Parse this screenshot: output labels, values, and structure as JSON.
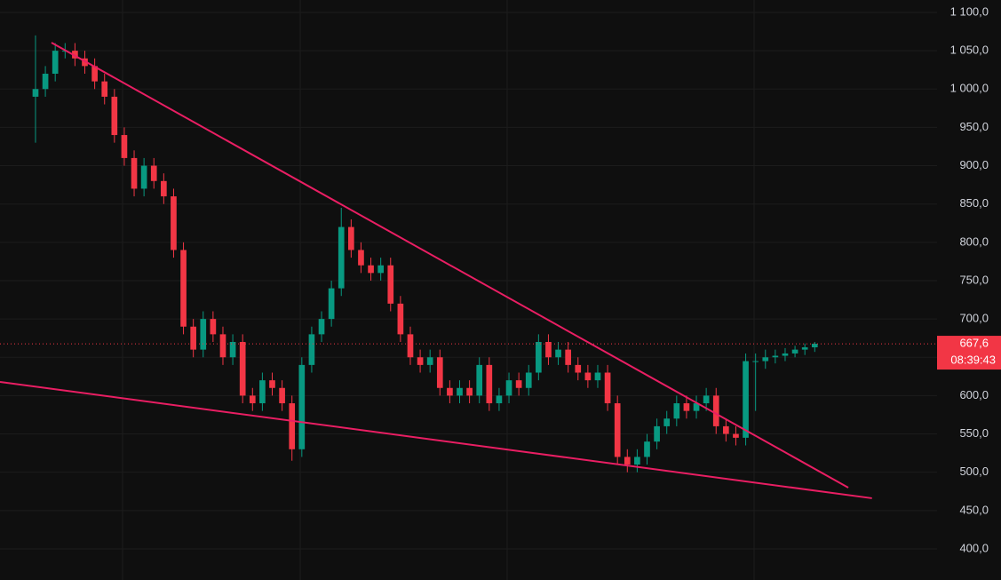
{
  "chart_data": {
    "type": "candlestick",
    "ylim": [
      359.4,
      1116.2
    ],
    "xlim": [
      -3.6,
      91.4
    ],
    "yticks": [
      {
        "value": 1100,
        "label": "1 100,0"
      },
      {
        "value": 1050,
        "label": "1 050,0"
      },
      {
        "value": 1000,
        "label": "1 000,0"
      },
      {
        "value": 950,
        "label": "950,0"
      },
      {
        "value": 900,
        "label": "900,0"
      },
      {
        "value": 850,
        "label": "850,0"
      },
      {
        "value": 800,
        "label": "800,0"
      },
      {
        "value": 750,
        "label": "750,0"
      },
      {
        "value": 700,
        "label": "700,0"
      },
      {
        "value": 650,
        "label": "650,0"
      },
      {
        "value": 600,
        "label": "600,0"
      },
      {
        "value": 550,
        "label": "550,0"
      },
      {
        "value": 500,
        "label": "500,0"
      },
      {
        "value": 450,
        "label": "450,0"
      },
      {
        "value": 400,
        "label": "400,0"
      }
    ],
    "grid": true,
    "up_color": "#089981",
    "down_color": "#f23645",
    "open": [
      990,
      1000,
      1020,
      1050,
      1050,
      1040,
      1030,
      1010,
      990,
      940,
      910,
      870,
      900,
      880,
      860,
      790,
      690,
      660,
      700,
      680,
      650,
      670,
      600,
      590,
      620,
      610,
      590,
      530,
      640,
      680,
      700,
      740,
      820,
      790,
      770,
      760,
      770,
      720,
      680,
      650,
      640,
      650,
      610,
      600,
      610,
      600,
      640,
      590,
      600,
      620,
      610,
      630,
      670,
      650,
      660,
      640,
      630,
      620,
      630,
      590,
      520,
      510,
      520,
      540,
      560,
      570,
      590,
      580,
      590,
      600,
      560,
      550,
      545,
      645,
      645,
      650,
      652,
      655,
      660,
      663
    ],
    "high": [
      1070,
      1030,
      1060,
      1060,
      1060,
      1050,
      1040,
      1020,
      1000,
      950,
      920,
      910,
      910,
      890,
      870,
      800,
      700,
      710,
      710,
      690,
      680,
      680,
      610,
      630,
      630,
      620,
      600,
      650,
      690,
      710,
      750,
      845,
      830,
      800,
      780,
      780,
      780,
      730,
      690,
      660,
      660,
      660,
      620,
      620,
      620,
      650,
      650,
      610,
      630,
      630,
      640,
      680,
      680,
      670,
      670,
      650,
      640,
      640,
      640,
      600,
      530,
      530,
      550,
      570,
      580,
      600,
      600,
      600,
      610,
      610,
      570,
      560,
      655,
      655,
      660,
      660,
      662,
      665,
      668,
      670
    ],
    "low": [
      930,
      990,
      1010,
      1040,
      1030,
      1020,
      1000,
      980,
      930,
      900,
      860,
      860,
      870,
      850,
      780,
      680,
      650,
      650,
      670,
      640,
      640,
      590,
      580,
      580,
      600,
      580,
      515,
      520,
      630,
      670,
      690,
      730,
      780,
      760,
      750,
      750,
      710,
      670,
      640,
      630,
      630,
      600,
      590,
      590,
      590,
      590,
      580,
      580,
      590,
      600,
      600,
      620,
      640,
      640,
      630,
      620,
      610,
      610,
      580,
      510,
      500,
      500,
      510,
      530,
      550,
      560,
      570,
      570,
      580,
      550,
      540,
      535,
      535,
      580,
      635,
      642,
      645,
      650,
      653,
      657
    ],
    "close": [
      1000,
      1020,
      1050,
      1050,
      1040,
      1030,
      1010,
      990,
      940,
      910,
      870,
      900,
      880,
      860,
      790,
      690,
      660,
      700,
      680,
      650,
      670,
      600,
      590,
      620,
      610,
      590,
      530,
      640,
      680,
      700,
      740,
      820,
      790,
      770,
      760,
      770,
      720,
      680,
      650,
      640,
      650,
      610,
      600,
      610,
      600,
      640,
      590,
      600,
      620,
      610,
      630,
      670,
      650,
      660,
      640,
      630,
      620,
      630,
      590,
      520,
      510,
      520,
      540,
      560,
      570,
      590,
      580,
      590,
      600,
      560,
      550,
      545,
      645,
      645,
      650,
      652,
      655,
      660,
      663,
      667.6
    ],
    "trendlines": [
      {
        "color": "#e91e63",
        "x": [
          1.62,
          82.4
        ],
        "y": [
          1060.6,
          480.0
        ]
      },
      {
        "color": "#e91e63",
        "x": [
          -3.6,
          84.8
        ],
        "y": [
          617.9,
          466.1
        ]
      }
    ],
    "last_price": {
      "value": 667.6,
      "label": "667,6",
      "countdown": "08:39:43",
      "color": "#f23645"
    }
  }
}
